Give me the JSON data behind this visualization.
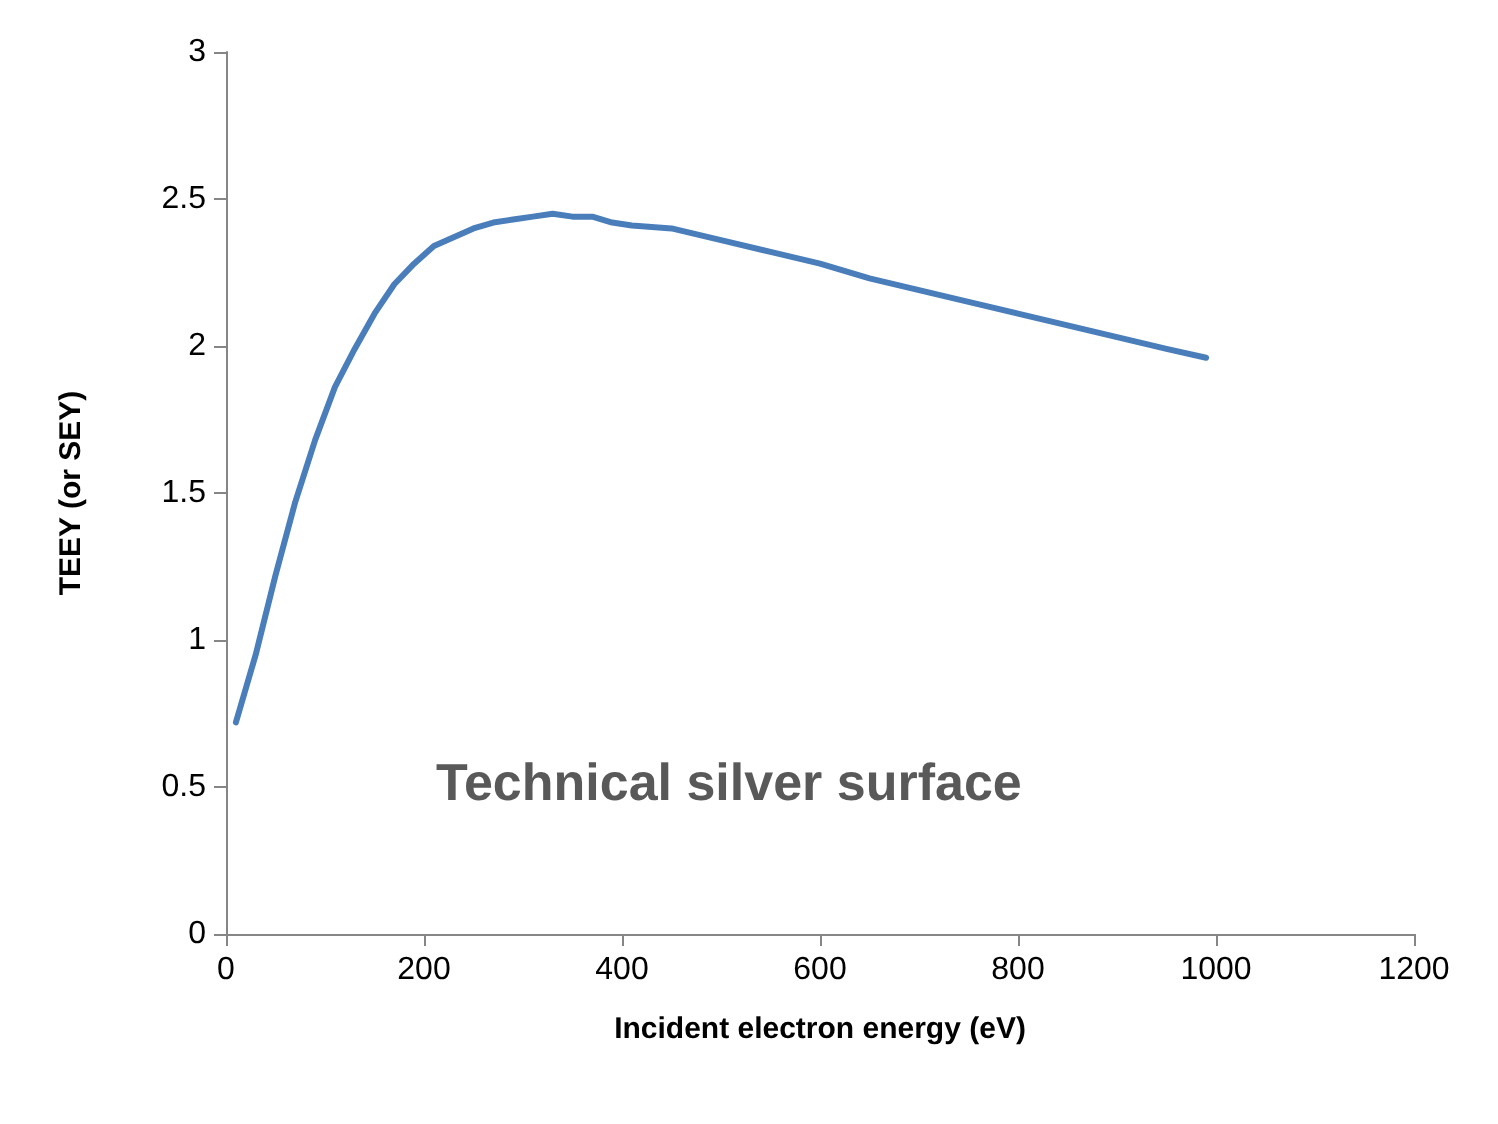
{
  "chart_data": {
    "type": "line",
    "xlabel": "Incident electron energy (eV)",
    "ylabel": "TEEY (or SEY)",
    "annotations": [
      "Technical silver surface"
    ],
    "x": [
      10,
      30,
      50,
      70,
      90,
      110,
      130,
      150,
      170,
      190,
      210,
      230,
      250,
      270,
      290,
      310,
      330,
      350,
      370,
      390,
      410,
      450,
      500,
      550,
      600,
      650,
      700,
      750,
      800,
      850,
      900,
      950,
      990
    ],
    "series": [
      {
        "color": "#4a7ebb",
        "values": [
          0.72,
          0.95,
          1.22,
          1.47,
          1.68,
          1.86,
          1.99,
          2.11,
          2.21,
          2.28,
          2.34,
          2.37,
          2.4,
          2.42,
          2.43,
          2.44,
          2.45,
          2.44,
          2.44,
          2.42,
          2.41,
          2.4,
          2.36,
          2.32,
          2.28,
          2.23,
          2.19,
          2.15,
          2.11,
          2.07,
          2.03,
          1.99,
          1.96
        ]
      }
    ],
    "xlim": [
      0,
      1200
    ],
    "xticks": [
      0,
      200,
      400,
      600,
      800,
      1000,
      1200
    ],
    "ylim": [
      0,
      3
    ],
    "yticks": [
      0,
      0.5,
      1,
      1.5,
      2,
      2.5,
      3
    ],
    "grid": false,
    "marker": "none",
    "line_style": "solid"
  }
}
